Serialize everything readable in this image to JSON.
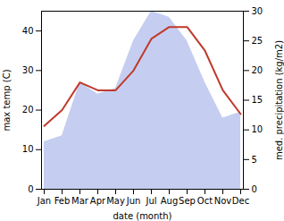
{
  "chart_data": {
    "type": "line",
    "categories": [
      "Jan",
      "Feb",
      "Mar",
      "Apr",
      "May",
      "Jun",
      "Jul",
      "Aug",
      "Sep",
      "Oct",
      "Nov",
      "Dec"
    ],
    "xlabel": "date (month)",
    "ylabel": "max temp (C)",
    "y2label": "med. precipitation (kg/m2)",
    "ylim": [
      0,
      45
    ],
    "yticks": [
      0,
      10,
      20,
      30,
      40
    ],
    "y2lim": [
      0,
      30
    ],
    "y2ticks": [
      0,
      5,
      10,
      15,
      20,
      25,
      30
    ],
    "series": [
      {
        "type": "area",
        "axis": "y2",
        "color": "#c5cef0",
        "values": [
          8,
          9,
          18,
          16,
          17,
          25,
          30,
          29,
          25,
          18,
          12,
          13
        ]
      },
      {
        "type": "line",
        "color": "#c0392b",
        "values": [
          16,
          20,
          27,
          25,
          25,
          30,
          38,
          41,
          41,
          35,
          25,
          19
        ]
      }
    ]
  }
}
